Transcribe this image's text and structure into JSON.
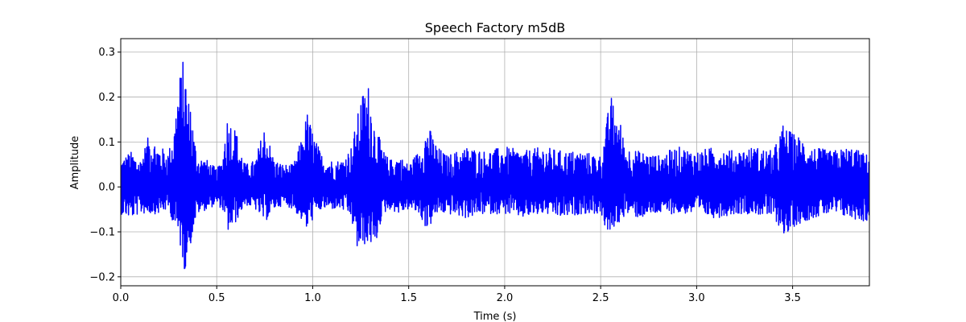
{
  "chart_data": {
    "type": "line",
    "title": "Speech Factory m5dB",
    "xlabel": "Time (s)",
    "ylabel": "Amplitude",
    "xlim": [
      0.0,
      3.9
    ],
    "ylim": [
      -0.22,
      0.33
    ],
    "x_ticks": [
      "0.0",
      "0.5",
      "1.0",
      "1.5",
      "2.0",
      "2.5",
      "3.0",
      "3.5"
    ],
    "x_tick_values": [
      0.0,
      0.5,
      1.0,
      1.5,
      2.0,
      2.5,
      3.0,
      3.5
    ],
    "y_ticks": [
      "−0.2",
      "−0.1",
      "0.0",
      "0.1",
      "0.2",
      "0.3"
    ],
    "y_tick_values": [
      -0.2,
      -0.1,
      0.0,
      0.1,
      0.2,
      0.3
    ],
    "grid": true,
    "line_color": "#0000ff",
    "series": [
      {
        "envelope": {
          "x": [
            0.0,
            0.05,
            0.1,
            0.15,
            0.2,
            0.25,
            0.28,
            0.3,
            0.32,
            0.33,
            0.34,
            0.35,
            0.36,
            0.38,
            0.4,
            0.45,
            0.5,
            0.53,
            0.55,
            0.57,
            0.6,
            0.62,
            0.65,
            0.7,
            0.75,
            0.8,
            0.85,
            0.9,
            0.95,
            0.97,
            0.99,
            1.02,
            1.05,
            1.1,
            1.15,
            1.2,
            1.23,
            1.25,
            1.27,
            1.29,
            1.3,
            1.32,
            1.34,
            1.37,
            1.4,
            1.45,
            1.5,
            1.55,
            1.6,
            1.62,
            1.65,
            1.7,
            1.8,
            1.9,
            2.0,
            2.1,
            2.2,
            2.3,
            2.4,
            2.5,
            2.53,
            2.55,
            2.57,
            2.6,
            2.63,
            2.7,
            2.8,
            2.9,
            3.0,
            3.1,
            3.2,
            3.3,
            3.4,
            3.45,
            3.47,
            3.5,
            3.55,
            3.6,
            3.7,
            3.8,
            3.9
          ],
          "max": [
            0.06,
            0.08,
            0.06,
            0.12,
            0.09,
            0.08,
            0.14,
            0.24,
            0.27,
            0.3,
            0.25,
            0.18,
            0.22,
            0.12,
            0.07,
            0.06,
            0.04,
            0.06,
            0.16,
            0.15,
            0.13,
            0.09,
            0.05,
            0.06,
            0.14,
            0.06,
            0.05,
            0.05,
            0.12,
            0.17,
            0.14,
            0.1,
            0.07,
            0.06,
            0.06,
            0.09,
            0.15,
            0.2,
            0.22,
            0.23,
            0.21,
            0.15,
            0.12,
            0.08,
            0.06,
            0.07,
            0.05,
            0.08,
            0.14,
            0.12,
            0.09,
            0.07,
            0.09,
            0.08,
            0.09,
            0.08,
            0.09,
            0.08,
            0.08,
            0.07,
            0.14,
            0.21,
            0.18,
            0.15,
            0.09,
            0.08,
            0.07,
            0.09,
            0.08,
            0.09,
            0.08,
            0.09,
            0.08,
            0.14,
            0.13,
            0.12,
            0.11,
            0.09,
            0.08,
            0.09,
            0.07
          ],
          "min": [
            -0.06,
            -0.07,
            -0.06,
            -0.06,
            -0.06,
            -0.05,
            -0.09,
            -0.12,
            -0.15,
            -0.2,
            -0.17,
            -0.13,
            -0.14,
            -0.09,
            -0.06,
            -0.05,
            -0.04,
            -0.05,
            -0.1,
            -0.1,
            -0.08,
            -0.06,
            -0.04,
            -0.05,
            -0.08,
            -0.05,
            -0.04,
            -0.05,
            -0.08,
            -0.1,
            -0.08,
            -0.06,
            -0.05,
            -0.05,
            -0.05,
            -0.07,
            -0.14,
            -0.15,
            -0.13,
            -0.14,
            -0.12,
            -0.17,
            -0.1,
            -0.06,
            -0.05,
            -0.06,
            -0.05,
            -0.06,
            -0.1,
            -0.08,
            -0.06,
            -0.06,
            -0.07,
            -0.06,
            -0.06,
            -0.07,
            -0.06,
            -0.07,
            -0.06,
            -0.06,
            -0.1,
            -0.12,
            -0.09,
            -0.08,
            -0.06,
            -0.07,
            -0.06,
            -0.06,
            -0.06,
            -0.07,
            -0.06,
            -0.06,
            -0.07,
            -0.1,
            -0.12,
            -0.09,
            -0.08,
            -0.07,
            -0.06,
            -0.07,
            -0.08
          ]
        }
      }
    ]
  }
}
